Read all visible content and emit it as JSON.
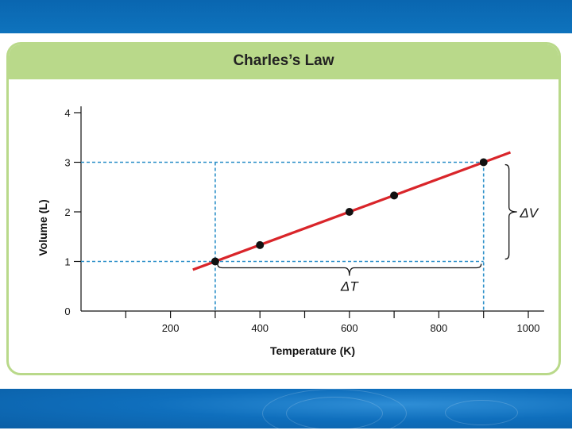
{
  "page": {
    "title": "Charles’s Law"
  },
  "theme": {
    "band_color": "#0e6fbc",
    "card_color": "#b9d98a",
    "line_color": "#d9252a",
    "guide_color": "#2b8fc8"
  },
  "chart_data": {
    "type": "scatter",
    "title": "Charles’s Law",
    "xlabel": "Temperature (K)",
    "ylabel": "Volume (L)",
    "xlim": [
      0,
      1000
    ],
    "ylim": [
      0,
      4
    ],
    "x_ticks": [
      100,
      200,
      300,
      400,
      500,
      600,
      700,
      800,
      900,
      1000
    ],
    "x_tick_labels": [
      "",
      "200",
      "",
      "400",
      "",
      "600",
      "",
      "800",
      "",
      "1000"
    ],
    "y_ticks": [
      0,
      1,
      2,
      3,
      4
    ],
    "y_tick_labels": [
      "0",
      "1",
      "2",
      "3",
      "4"
    ],
    "points": [
      {
        "x": 300,
        "y": 1
      },
      {
        "x": 400,
        "y": 1.33
      },
      {
        "x": 600,
        "y": 2
      },
      {
        "x": 700,
        "y": 2.33
      },
      {
        "x": 900,
        "y": 3
      }
    ],
    "fit_line": {
      "x_start": 250,
      "x_end": 960,
      "slope": 0.0033333
    },
    "guides": {
      "horizontal": [
        1,
        3
      ],
      "vertical": [
        300,
        900
      ]
    },
    "annotations": {
      "delta_t": "ΔT",
      "delta_v": "ΔV"
    },
    "grid": false
  }
}
